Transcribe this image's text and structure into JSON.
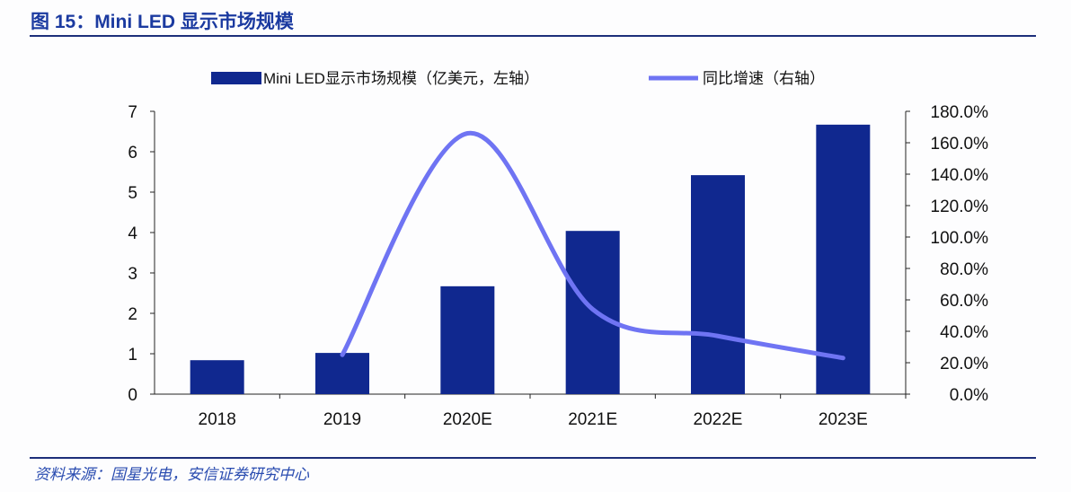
{
  "title": "图 15：Mini LED 显示市场规模",
  "source": "资料来源：国星光电，安信证券研究中心",
  "colors": {
    "bar": "#10288f",
    "line": "#6f74f3",
    "title": "#1b3aa0"
  },
  "chart_data": {
    "type": "bar+line",
    "categories": [
      "2018",
      "2019",
      "2020E",
      "2021E",
      "2022E",
      "2023E"
    ],
    "series": [
      {
        "name": "Mini LED显示市场规模（亿美元，左轴）",
        "type": "bar",
        "axis": "left",
        "values": [
          0.84,
          1.02,
          2.67,
          4.04,
          5.42,
          6.67
        ]
      },
      {
        "name": "同比增速（右轴）",
        "type": "line",
        "axis": "right",
        "smooth": true,
        "values": [
          null,
          25,
          166,
          54,
          37,
          23
        ]
      }
    ],
    "left_axis": {
      "ylim": [
        0,
        7
      ],
      "ticks": [
        "0",
        "1",
        "2",
        "3",
        "4",
        "5",
        "6",
        "7"
      ]
    },
    "right_axis": {
      "ylim": [
        0,
        180
      ],
      "ticks": [
        "0.0%",
        "20.0%",
        "40.0%",
        "60.0%",
        "80.0%",
        "100.0%",
        "120.0%",
        "140.0%",
        "160.0%",
        "180.0%"
      ]
    },
    "grid": false,
    "legend": "top"
  }
}
